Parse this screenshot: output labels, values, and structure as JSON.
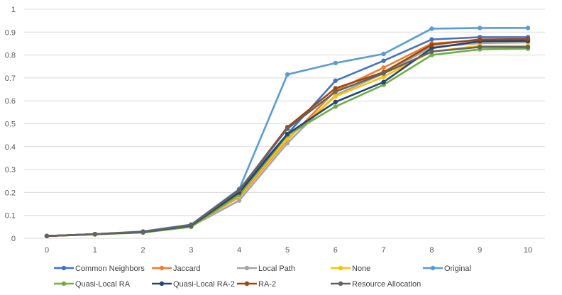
{
  "chart_data": {
    "type": "line",
    "title": "",
    "xlabel": "",
    "ylabel": "",
    "x": [
      0,
      1,
      2,
      3,
      4,
      5,
      6,
      7,
      8,
      9,
      10
    ],
    "ylim": [
      0,
      1
    ],
    "yticks": [
      "0",
      "0.1",
      "0.2",
      "0.3",
      "0.4",
      "0.5",
      "0.6",
      "0.7",
      "0.8",
      "0.9",
      "1"
    ],
    "xticks": [
      "0",
      "1",
      "2",
      "3",
      "4",
      "5",
      "6",
      "7",
      "8",
      "9",
      "10"
    ],
    "grid": true,
    "legend_position": "bottom",
    "series": [
      {
        "name": "Common Neighbors",
        "color": "#4472C4",
        "values": [
          0.01,
          0.018,
          0.028,
          0.058,
          0.212,
          0.455,
          0.688,
          0.775,
          0.868,
          0.878,
          0.878
        ]
      },
      {
        "name": "Jaccard",
        "color": "#ED7D31",
        "values": [
          0.01,
          0.018,
          0.027,
          0.055,
          0.18,
          0.43,
          0.645,
          0.745,
          0.85,
          0.865,
          0.868
        ]
      },
      {
        "name": "Local Path",
        "color": "#A5A5A5",
        "values": [
          0.01,
          0.017,
          0.026,
          0.052,
          0.165,
          0.415,
          0.625,
          0.72,
          0.835,
          0.852,
          0.855
        ]
      },
      {
        "name": "None",
        "color": "#FFC000",
        "values": [
          0.01,
          0.017,
          0.026,
          0.05,
          0.185,
          0.435,
          0.62,
          0.705,
          0.815,
          0.84,
          0.84
        ]
      },
      {
        "name": "Original",
        "color": "#5B9BD5",
        "values": [
          0.01,
          0.018,
          0.03,
          0.06,
          0.215,
          0.715,
          0.765,
          0.805,
          0.915,
          0.918,
          0.918
        ]
      },
      {
        "name": "Quasi-Local RA",
        "color": "#70AD47",
        "values": [
          0.01,
          0.017,
          0.025,
          0.05,
          0.19,
          0.45,
          0.575,
          0.67,
          0.8,
          0.825,
          0.828
        ]
      },
      {
        "name": "Quasi-Local RA-2",
        "color": "#264478",
        "values": [
          0.01,
          0.018,
          0.027,
          0.055,
          0.2,
          0.455,
          0.595,
          0.682,
          0.83,
          0.86,
          0.862
        ]
      },
      {
        "name": "RA-2",
        "color": "#9E480E",
        "values": [
          0.01,
          0.018,
          0.028,
          0.058,
          0.21,
          0.485,
          0.655,
          0.725,
          0.845,
          0.868,
          0.87
        ]
      },
      {
        "name": "Resource Allocation",
        "color": "#636363",
        "values": [
          0.01,
          0.018,
          0.028,
          0.058,
          0.212,
          0.478,
          0.64,
          0.72,
          0.815,
          0.835,
          0.835
        ]
      }
    ]
  }
}
